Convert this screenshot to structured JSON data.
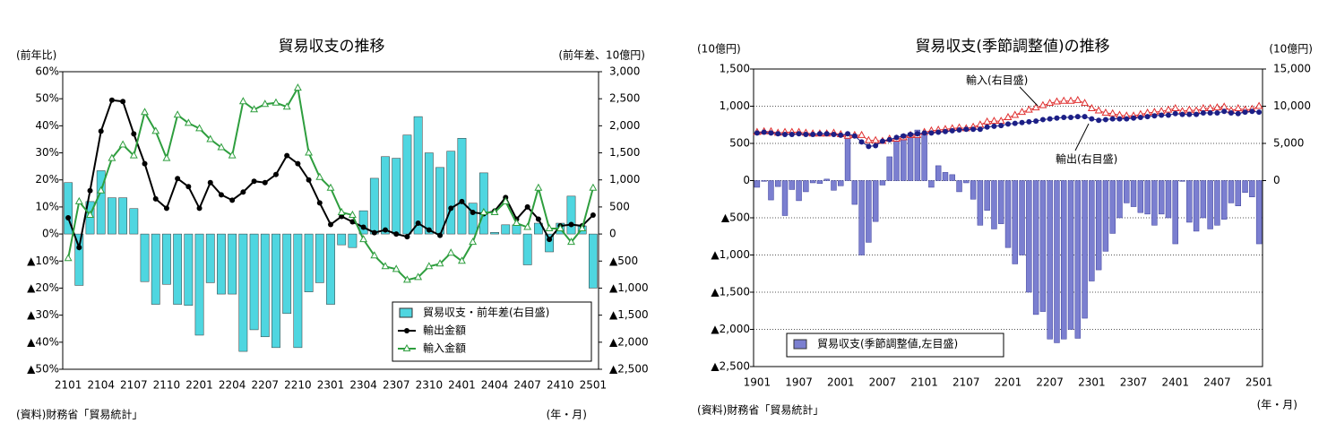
{
  "chart_data": [
    {
      "type": "combo",
      "title": "貿易収支の推移",
      "y_label": "(前年比)",
      "y2_label": "(前年差、10億円)",
      "source": "(資料)財務省「貿易統計」",
      "x_label": "(年・月)",
      "grid": false,
      "categories": [
        "2101",
        null,
        null,
        "2104",
        null,
        null,
        "2107",
        null,
        null,
        "2110",
        null,
        null,
        "2201",
        null,
        null,
        "2204",
        null,
        null,
        "2207",
        null,
        null,
        "2210",
        null,
        null,
        "2301",
        null,
        null,
        "2304",
        null,
        null,
        "2307",
        null,
        null,
        "2310",
        null,
        null,
        "2401",
        null,
        null,
        "2404",
        null,
        null,
        "2407",
        null,
        null,
        "2410",
        null,
        null,
        "2501"
      ],
      "ylim": [
        -50,
        60
      ],
      "yticks": [
        {
          "value": 60,
          "label": "60%"
        },
        {
          "value": 50,
          "label": "50%"
        },
        {
          "value": 40,
          "label": "40%"
        },
        {
          "value": 30,
          "label": "30%"
        },
        {
          "value": 20,
          "label": "20%"
        },
        {
          "value": 10,
          "label": "10%"
        },
        {
          "value": 0,
          "label": "0%"
        },
        {
          "value": -10,
          "label": "▲10%"
        },
        {
          "value": -20,
          "label": "▲20%"
        },
        {
          "value": -30,
          "label": "▲30%"
        },
        {
          "value": -40,
          "label": "▲40%"
        },
        {
          "value": -50,
          "label": "▲50%"
        }
      ],
      "y2lim": [
        -2500,
        3000
      ],
      "y2ticks": [
        {
          "value": 3000,
          "label": "3,000"
        },
        {
          "value": 2500,
          "label": "2,500"
        },
        {
          "value": 2000,
          "label": "2,000"
        },
        {
          "value": 1500,
          "label": "1,500"
        },
        {
          "value": 1000,
          "label": "1,000"
        },
        500,
        0,
        {
          "value": -500,
          "label": "▲500"
        },
        {
          "value": -1000,
          "label": "▲1,000"
        },
        {
          "value": -1500,
          "label": "▲1,500"
        },
        {
          "value": -2000,
          "label": "▲2,000"
        },
        {
          "value": -2500,
          "label": "▲2,500"
        }
      ],
      "series": [
        {
          "name": "貿易収支・前年差(右目盛)",
          "type": "bar",
          "axis": "y2",
          "color": "#4fd6e0",
          "values": [
            950,
            -950,
            600,
            1170,
            670,
            670,
            470,
            -880,
            -1300,
            -930,
            -1300,
            -1320,
            -1870,
            -900,
            -1110,
            -1110,
            -2170,
            -1770,
            -1900,
            -2100,
            -1470,
            -2100,
            -1070,
            -900,
            -1300,
            -200,
            -250,
            430,
            1030,
            1430,
            1400,
            1830,
            2170,
            1500,
            1230,
            1530,
            1770,
            570,
            1130,
            30,
            170,
            170,
            -570,
            200,
            -330,
            200,
            700,
            150,
            -1000
          ]
        },
        {
          "name": "輸出金額",
          "type": "line",
          "marker": "circle",
          "color": "#000000",
          "values": [
            6,
            -5,
            16,
            38,
            49.5,
            49,
            37,
            26,
            13,
            9.5,
            20.5,
            17.5,
            9.5,
            19,
            14.5,
            12.5,
            15.5,
            19.5,
            19,
            22,
            29,
            26,
            20,
            11.5,
            3.5,
            6.5,
            4.5,
            2.5,
            0.5,
            1.5,
            0,
            -1,
            4,
            1.5,
            -0.5,
            9.5,
            12,
            8,
            7.5,
            8.5,
            13.5,
            5.5,
            10,
            5.5,
            -2,
            3,
            3.5,
            3,
            7
          ]
        },
        {
          "name": "輸入金額",
          "type": "line",
          "marker": "triangle",
          "color": "#2e9e3e",
          "values": [
            -9,
            12,
            7,
            16,
            28,
            33,
            29,
            45,
            38,
            28,
            44,
            41,
            39,
            35,
            32,
            29,
            49,
            46,
            48,
            48.5,
            47,
            54,
            30,
            21,
            17,
            8,
            7,
            -2,
            -8,
            -12,
            -13,
            -17,
            -16,
            -12,
            -11,
            -7,
            -10,
            -3,
            8,
            8,
            12,
            4,
            2.5,
            17,
            2,
            2,
            -3,
            2,
            17
          ]
        }
      ]
    },
    {
      "type": "combo",
      "title": "貿易収支(季節調整値)の推移",
      "y_label": "(10億円)",
      "y2_label": "(10億円)",
      "source": "(資料)財務省「貿易統計」",
      "x_label": "(年・月)",
      "grid": true,
      "annotations": [
        "輸入(右目盛)",
        "輸出(右目盛)"
      ],
      "categories": [
        "1901",
        null,
        null,
        null,
        null,
        null,
        "1907",
        null,
        null,
        null,
        null,
        null,
        "2001",
        null,
        null,
        null,
        null,
        null,
        "2007",
        null,
        null,
        null,
        null,
        null,
        "2101",
        null,
        null,
        null,
        null,
        null,
        "2107",
        null,
        null,
        null,
        null,
        null,
        "2201",
        null,
        null,
        null,
        null,
        null,
        "2207",
        null,
        null,
        null,
        null,
        null,
        "2301",
        null,
        null,
        null,
        null,
        null,
        "2307",
        null,
        null,
        null,
        null,
        null,
        "2401",
        null,
        null,
        null,
        null,
        null,
        "2407",
        null,
        null,
        null,
        null,
        null,
        "2501"
      ],
      "ylim": [
        -2500,
        1500
      ],
      "yticks": [
        {
          "value": 1500,
          "label": "1,500"
        },
        {
          "value": 1000,
          "label": "1,000"
        },
        500,
        0,
        {
          "value": -500,
          "label": "▲500"
        },
        {
          "value": -1000,
          "label": "▲1,000"
        },
        {
          "value": -1500,
          "label": "▲1,500"
        },
        {
          "value": -2000,
          "label": "▲2,000"
        },
        {
          "value": -2500,
          "label": "▲2,500"
        }
      ],
      "y2lim": [
        -25000,
        15000
      ],
      "y2ticks": [
        {
          "value": 15000,
          "label": "15,000"
        },
        {
          "value": 10000,
          "label": "10,000"
        },
        {
          "value": 5000,
          "label": "5,000"
        },
        0
      ],
      "series": [
        {
          "name": "貿易収支(季節調整値,左目盛)",
          "type": "bar",
          "axis": "y",
          "color": "#7b7fd0",
          "values": [
            -90,
            -10,
            -260,
            -80,
            -470,
            -120,
            -270,
            -150,
            -30,
            -40,
            20,
            -130,
            -70,
            600,
            -320,
            -1000,
            -830,
            -550,
            -60,
            320,
            550,
            620,
            640,
            680,
            640,
            -90,
            200,
            110,
            80,
            -150,
            -30,
            -250,
            -600,
            -400,
            -650,
            -580,
            -900,
            -1120,
            -1000,
            -1500,
            -1800,
            -1760,
            -2130,
            -2180,
            -2130,
            -2000,
            -2120,
            -1850,
            -1350,
            -1200,
            -950,
            -710,
            -500,
            -300,
            -350,
            -430,
            -450,
            -600,
            -450,
            -500,
            -850,
            -10,
            -560,
            -680,
            -500,
            -650,
            -600,
            -520,
            -300,
            -340,
            -160,
            -220,
            -850
          ]
        },
        {
          "type": "line",
          "marker": "triangle",
          "axis": "y2",
          "color": "#e03030",
          "values": [
            6500,
            6600,
            6600,
            6400,
            6500,
            6500,
            6500,
            6400,
            6300,
            6300,
            6300,
            6400,
            6200,
            6000,
            6100,
            6100,
            5400,
            5400,
            5300,
            5600,
            5600,
            5800,
            6100,
            6100,
            6500,
            6700,
            6800,
            6900,
            7000,
            7100,
            7000,
            7200,
            7500,
            7900,
            8000,
            8000,
            8500,
            8800,
            9200,
            9500,
            9800,
            10100,
            10400,
            10600,
            10700,
            10700,
            10800,
            10400,
            9700,
            9400,
            9100,
            9000,
            8800,
            8700,
            8700,
            8900,
            9100,
            9200,
            9300,
            9500,
            9700,
            9300,
            9500,
            9400,
            9700,
            9700,
            9800,
            9900,
            9400,
            9700,
            9500,
            9600,
            10000
          ]
        },
        {
          "type": "line",
          "marker": "circle",
          "axis": "y2",
          "color": "#1c1f86",
          "values": [
            6400,
            6500,
            6400,
            6300,
            6200,
            6200,
            6300,
            6200,
            6200,
            6300,
            6300,
            6200,
            6100,
            6300,
            6000,
            5200,
            4600,
            4700,
            5300,
            5500,
            5800,
            6000,
            6200,
            6300,
            6400,
            6400,
            6500,
            6600,
            6700,
            6800,
            6900,
            6900,
            6900,
            7200,
            7300,
            7400,
            7600,
            7700,
            7800,
            7900,
            8000,
            8200,
            8300,
            8400,
            8500,
            8500,
            8600,
            8600,
            8300,
            8100,
            8200,
            8300,
            8300,
            8300,
            8400,
            8500,
            8600,
            8700,
            8800,
            8800,
            9000,
            8900,
            8900,
            8900,
            9100,
            9100,
            9100,
            9300,
            9100,
            9000,
            9200,
            9300,
            9200
          ]
        }
      ]
    }
  ]
}
